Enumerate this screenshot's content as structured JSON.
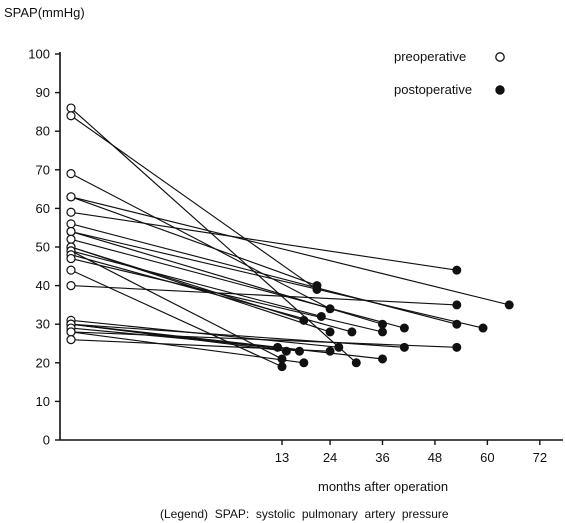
{
  "chart_data": {
    "type": "line",
    "ylabel": "SPAP(mmHg)",
    "xlabel": "months after operation",
    "y_ticks": [
      "0",
      "10",
      "20",
      "30",
      "40",
      "50",
      "60",
      "70",
      "80",
      "90",
      "100"
    ],
    "x_ticks": [
      "13",
      "24",
      "36",
      "48",
      "60",
      "72"
    ],
    "ylim": [
      0,
      100
    ],
    "xlim": [
      0,
      72
    ],
    "legend": {
      "position": "top-right",
      "preoperative_label": "preoperative",
      "postoperative_label": "postoperative"
    },
    "footnote": "(Legend)  SPAP:  systolic  pulmonary  artery  pressure",
    "series": [
      {
        "x": [
          0,
          30
        ],
        "y": [
          86,
          20
        ]
      },
      {
        "x": [
          0,
          21
        ],
        "y": [
          84,
          39
        ]
      },
      {
        "x": [
          0,
          24
        ],
        "y": [
          69,
          34
        ]
      },
      {
        "x": [
          0,
          21
        ],
        "y": [
          63,
          40
        ]
      },
      {
        "x": [
          0,
          65
        ],
        "y": [
          63,
          35
        ]
      },
      {
        "x": [
          0,
          53
        ],
        "y": [
          59,
          44
        ]
      },
      {
        "x": [
          0,
          53
        ],
        "y": [
          56,
          30
        ]
      },
      {
        "x": [
          0,
          36
        ],
        "y": [
          54,
          30
        ]
      },
      {
        "x": [
          0,
          59
        ],
        "y": [
          54,
          29
        ]
      },
      {
        "x": [
          0,
          41
        ],
        "y": [
          52,
          29
        ]
      },
      {
        "x": [
          0,
          18
        ],
        "y": [
          50,
          31
        ]
      },
      {
        "x": [
          0,
          24
        ],
        "y": [
          50,
          28
        ]
      },
      {
        "x": [
          0,
          22
        ],
        "y": [
          49,
          32
        ]
      },
      {
        "x": [
          0,
          13
        ],
        "y": [
          49,
          21
        ]
      },
      {
        "x": [
          0,
          29
        ],
        "y": [
          48,
          28
        ]
      },
      {
        "x": [
          0,
          36
        ],
        "y": [
          47,
          28
        ]
      },
      {
        "x": [
          0,
          13
        ],
        "y": [
          44,
          19
        ]
      },
      {
        "x": [
          0,
          53
        ],
        "y": [
          40,
          35
        ]
      },
      {
        "x": [
          0,
          26
        ],
        "y": [
          31,
          24
        ]
      },
      {
        "x": [
          0,
          36
        ],
        "y": [
          30,
          21
        ]
      },
      {
        "x": [
          0,
          41
        ],
        "y": [
          30,
          24
        ]
      },
      {
        "x": [
          0,
          17
        ],
        "y": [
          30,
          23
        ]
      },
      {
        "x": [
          0,
          14
        ],
        "y": [
          30,
          23
        ]
      },
      {
        "x": [
          0,
          12
        ],
        "y": [
          29,
          24
        ]
      },
      {
        "x": [
          0,
          53
        ],
        "y": [
          28,
          24
        ]
      },
      {
        "x": [
          0,
          18
        ],
        "y": [
          28,
          20
        ]
      },
      {
        "x": [
          0,
          24
        ],
        "y": [
          26,
          23
        ]
      }
    ]
  }
}
